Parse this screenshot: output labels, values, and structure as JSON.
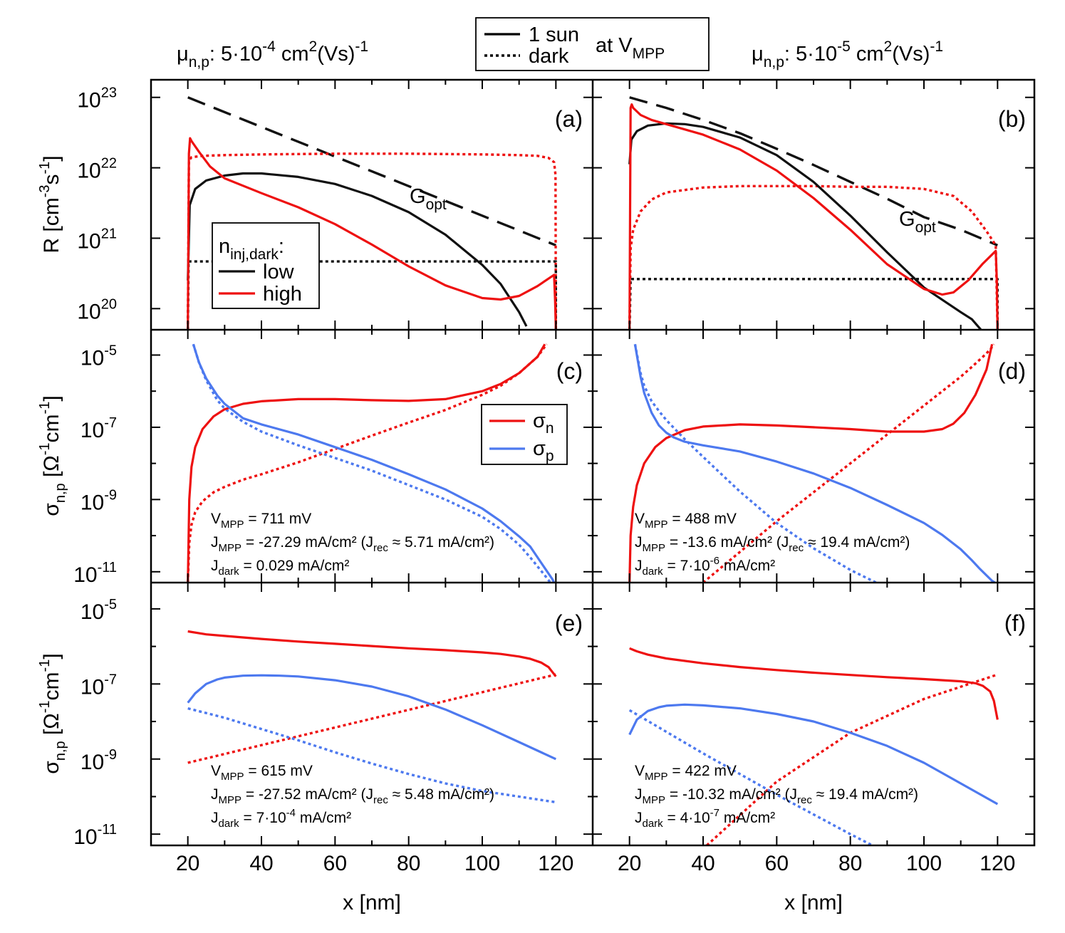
{
  "colors": {
    "red": "#ee1111",
    "blue": "#4d79ef",
    "black": "#000000",
    "blackcurve": "#111111"
  },
  "header": {
    "left_mu": {
      "base": "μ",
      "sub": "n,p",
      "text": ": 5·10",
      "exp": "-4",
      "unit": " cm",
      "unit_exp": "2",
      "tail": "(Vs)",
      "tail_exp": "-1"
    },
    "right_mu": {
      "base": "μ",
      "sub": "n,p",
      "text": ": 5·10",
      "exp": "-5",
      "unit": " cm",
      "unit_exp": "2",
      "tail": "(Vs)",
      "tail_exp": "-1"
    },
    "legend": {
      "solid": "1 sun",
      "dotted": "dark",
      "at": "at V",
      "at_sub": "MPP"
    }
  },
  "axes": {
    "x_label": "x [nm]",
    "x_ticks": [
      "20",
      "40",
      "60",
      "80",
      "100",
      "120"
    ],
    "x_range": [
      10,
      130
    ],
    "row1_ylabel": {
      "base": "R [cm",
      "e1": "-3",
      "mid": "s",
      "e2": "-1",
      "end": "]"
    },
    "row1_ticks": [
      "20",
      "21",
      "22",
      "23"
    ],
    "row1_range": [
      19.7,
      23.25
    ],
    "row23_ylabel": {
      "base": "σ",
      "sub": "n,p",
      "pre": " [Ω",
      "e1": "-1",
      "mid": "cm",
      "e2": "-1",
      "end": "]"
    },
    "row23_ticks": [
      "-5",
      "-7",
      "-9",
      "-11"
    ],
    "row23_range": [
      -11.3,
      -4.3
    ],
    "tick_base": "10"
  },
  "inset_legend_a": {
    "title": "n",
    "title_sub": "inj,dark",
    "title_end": ":",
    "low": "low",
    "high": "high"
  },
  "inset_legend_c": {
    "n": "σ",
    "n_sub": "n",
    "p": "σ",
    "p_sub": "p"
  },
  "g_opt": {
    "base": "G",
    "sub": "opt"
  },
  "chart_data": [
    {
      "panel": "(a)",
      "type": "line",
      "series": [
        {
          "line": "dashed",
          "color": "black",
          "x": [
            20,
            120
          ],
          "y": [
            23.0,
            20.9
          ]
        },
        {
          "line": "solid",
          "color": "black",
          "x": [
            20,
            20.5,
            22,
            25,
            30,
            35,
            40,
            50,
            60,
            70,
            80,
            90,
            100,
            105,
            110,
            112
          ],
          "y": [
            20.4,
            21.47,
            21.7,
            21.82,
            21.89,
            21.92,
            21.92,
            21.87,
            21.77,
            21.6,
            21.37,
            21.05,
            20.62,
            20.35,
            19.95,
            19.75
          ]
        },
        {
          "line": "solid",
          "color": "red",
          "x": [
            20,
            20.3,
            20.6,
            21,
            23,
            26,
            30,
            40,
            50,
            60,
            70,
            80,
            90,
            100,
            105,
            110,
            115,
            119.5,
            119.8,
            120
          ],
          "y": [
            19.7,
            22.2,
            22.42,
            22.38,
            22.23,
            22.02,
            21.85,
            21.64,
            21.44,
            21.2,
            20.91,
            20.6,
            20.33,
            20.15,
            20.13,
            20.18,
            20.32,
            20.48,
            20.1,
            19.7
          ]
        },
        {
          "line": "dotted",
          "color": "red",
          "x": [
            20,
            20.3,
            21,
            24,
            30,
            40,
            60,
            80,
            100,
            110,
            115,
            118,
            119.5,
            119.9,
            120
          ],
          "y": [
            19.7,
            22.1,
            22.15,
            22.17,
            22.18,
            22.19,
            22.2,
            22.2,
            22.19,
            22.18,
            22.17,
            22.14,
            22.08,
            21.9,
            19.7
          ]
        },
        {
          "line": "dotted",
          "color": "black",
          "x": [
            20,
            20.2,
            120,
            120
          ],
          "y": [
            19.7,
            20.67,
            20.67,
            19.7
          ]
        }
      ]
    },
    {
      "panel": "(b)",
      "type": "line",
      "series": [
        {
          "line": "dashed",
          "color": "black",
          "x": [
            20,
            30,
            40,
            50,
            60,
            70,
            80,
            90,
            100,
            110,
            120
          ],
          "y": [
            23.0,
            22.85,
            22.68,
            22.49,
            22.27,
            22.04,
            21.8,
            21.56,
            21.3,
            21.12,
            20.9
          ]
        },
        {
          "line": "solid",
          "color": "black",
          "x": [
            20,
            20.5,
            22,
            25,
            30,
            35,
            40,
            50,
            60,
            70,
            80,
            90,
            100,
            110,
            113,
            115.5
          ],
          "y": [
            22.05,
            22.4,
            22.52,
            22.6,
            22.63,
            22.62,
            22.58,
            22.43,
            22.18,
            21.8,
            21.32,
            20.8,
            20.3,
            19.95,
            19.85,
            19.7
          ]
        },
        {
          "line": "solid",
          "color": "red",
          "x": [
            20,
            20.3,
            20.6,
            21,
            23,
            26,
            30,
            40,
            50,
            60,
            70,
            80,
            90,
            100,
            105,
            108,
            112,
            116,
            119.5,
            119.8,
            120
          ],
          "y": [
            19.7,
            22.85,
            22.9,
            22.85,
            22.75,
            22.68,
            22.62,
            22.47,
            22.26,
            21.96,
            21.57,
            21.12,
            20.63,
            20.28,
            20.2,
            20.23,
            20.4,
            20.64,
            20.82,
            20.4,
            19.7
          ]
        },
        {
          "line": "dotted",
          "color": "red",
          "x": [
            20,
            20.3,
            21,
            23,
            26,
            30,
            40,
            50,
            60,
            70,
            80,
            90,
            100,
            108,
            113,
            117,
            119.5,
            120
          ],
          "y": [
            19.7,
            20.85,
            21.12,
            21.38,
            21.55,
            21.65,
            21.72,
            21.74,
            21.74,
            21.74,
            21.73,
            21.73,
            21.7,
            21.6,
            21.38,
            21.1,
            20.9,
            19.7
          ]
        },
        {
          "line": "dotted",
          "color": "black",
          "x": [
            20,
            20.3,
            120,
            120
          ],
          "y": [
            19.7,
            20.42,
            20.42,
            19.7
          ]
        }
      ]
    },
    {
      "panel": "(c)",
      "type": "line",
      "series": [
        {
          "line": "solid",
          "color": "red",
          "x": [
            20,
            20.4,
            21,
            22,
            24,
            27,
            30,
            35,
            40,
            50,
            60,
            70,
            80,
            90,
            100,
            105,
            110,
            115,
            117
          ],
          "y": [
            -11.3,
            -9.0,
            -8.1,
            -7.55,
            -7.05,
            -6.7,
            -6.5,
            -6.35,
            -6.28,
            -6.22,
            -6.22,
            -6.25,
            -6.27,
            -6.22,
            -6.0,
            -5.8,
            -5.5,
            -5.05,
            -4.7
          ]
        },
        {
          "line": "dotted",
          "color": "red",
          "x": [
            20,
            20.4,
            21,
            22,
            24,
            27,
            30,
            35,
            40,
            50,
            60,
            70,
            80,
            90,
            100,
            105,
            110,
            115,
            117.5
          ],
          "y": [
            -11.3,
            -10.2,
            -9.7,
            -9.35,
            -9.05,
            -8.8,
            -8.65,
            -8.45,
            -8.3,
            -7.97,
            -7.6,
            -7.23,
            -6.87,
            -6.52,
            -6.1,
            -5.85,
            -5.5,
            -5.05,
            -4.7
          ]
        },
        {
          "line": "solid",
          "color": "blue",
          "x": [
            21.5,
            23,
            25,
            28,
            30,
            35,
            40,
            50,
            60,
            70,
            80,
            90,
            100,
            105,
            110,
            113,
            115,
            117,
            118,
            119,
            119.5
          ],
          "y": [
            -4.7,
            -5.2,
            -5.65,
            -6.12,
            -6.35,
            -6.75,
            -6.92,
            -7.2,
            -7.55,
            -7.9,
            -8.3,
            -8.72,
            -9.25,
            -9.6,
            -10.02,
            -10.3,
            -10.6,
            -10.9,
            -11.05,
            -11.2,
            -11.3
          ]
        },
        {
          "line": "dotted",
          "color": "blue",
          "x": [
            21.5,
            23,
            25,
            28,
            30,
            35,
            40,
            50,
            60,
            70,
            80,
            90,
            100,
            105,
            110,
            113,
            115,
            117,
            118.5
          ],
          "y": [
            -4.7,
            -5.2,
            -5.7,
            -6.25,
            -6.48,
            -6.85,
            -7.12,
            -7.5,
            -7.85,
            -8.2,
            -8.6,
            -9.0,
            -9.48,
            -9.82,
            -10.25,
            -10.6,
            -10.85,
            -11.1,
            -11.3
          ]
        }
      ],
      "annotations": [
        {
          "b": "V",
          "s": "MPP",
          "t": " = 711 mV"
        },
        {
          "b": "J",
          "s": "MPP",
          "t": " = -27.29 mA/cm² (J",
          "s2": "rec",
          "t2": " ≈ 5.71 mA/cm²)"
        },
        {
          "b": "J",
          "s": "dark",
          "t": " = 0.029 mA/cm²"
        }
      ]
    },
    {
      "panel": "(d)",
      "type": "line",
      "series": [
        {
          "line": "solid",
          "color": "red",
          "x": [
            20,
            20.3,
            21,
            22,
            24,
            27,
            30,
            35,
            40,
            50,
            60,
            70,
            80,
            90,
            100,
            105,
            108,
            111,
            114,
            117,
            118.5
          ],
          "y": [
            -11.3,
            -10.0,
            -9.2,
            -8.6,
            -8.0,
            -7.55,
            -7.3,
            -7.08,
            -6.98,
            -6.92,
            -6.95,
            -7.0,
            -7.05,
            -7.12,
            -7.12,
            -7.05,
            -6.9,
            -6.6,
            -6.1,
            -5.4,
            -4.7
          ]
        },
        {
          "line": "dotted",
          "color": "red",
          "x": [
            40,
            50,
            60,
            70,
            80,
            90,
            100,
            105,
            110,
            113,
            116,
            118,
            119
          ],
          "y": [
            -11.3,
            -10.45,
            -9.6,
            -8.8,
            -8.0,
            -7.2,
            -6.4,
            -6.0,
            -5.6,
            -5.33,
            -5.05,
            -4.85,
            -4.7
          ]
        },
        {
          "line": "solid",
          "color": "blue",
          "x": [
            21.5,
            23,
            24,
            26,
            28,
            30,
            32,
            35,
            40,
            50,
            60,
            70,
            80,
            90,
            100,
            105,
            110,
            113,
            115,
            117,
            118.5,
            119.3
          ],
          "y": [
            -4.7,
            -5.6,
            -6.05,
            -6.6,
            -6.95,
            -7.15,
            -7.28,
            -7.4,
            -7.5,
            -7.67,
            -7.95,
            -8.28,
            -8.68,
            -9.15,
            -9.65,
            -9.98,
            -10.38,
            -10.68,
            -10.9,
            -11.1,
            -11.25,
            -11.3
          ]
        },
        {
          "line": "dotted",
          "color": "blue",
          "x": [
            21.5,
            23,
            24,
            26,
            28,
            30,
            35,
            40,
            45,
            50,
            60,
            70,
            80,
            87
          ],
          "y": [
            -4.7,
            -5.5,
            -5.85,
            -6.28,
            -6.55,
            -6.8,
            -7.33,
            -7.82,
            -8.3,
            -8.78,
            -9.65,
            -10.35,
            -10.95,
            -11.3
          ]
        }
      ],
      "annotations": [
        {
          "b": "V",
          "s": "MPP",
          "t": " = 488 mV"
        },
        {
          "b": "J",
          "s": "MPP",
          "t": " = -13.6 mA/cm² (J",
          "s2": "rec",
          "t2": " ≈ 19.4 mA/cm²)"
        },
        {
          "b": "J",
          "s": "dark",
          "t": " = 7·10",
          "e": "-6",
          "t3": " mA/cm²"
        }
      ]
    },
    {
      "panel": "(e)",
      "type": "line",
      "series": [
        {
          "line": "solid",
          "color": "red",
          "x": [
            20,
            25,
            30,
            40,
            50,
            60,
            70,
            80,
            90,
            100,
            105,
            110,
            113,
            116,
            118,
            120
          ],
          "y": [
            -5.6,
            -5.68,
            -5.72,
            -5.8,
            -5.87,
            -5.93,
            -5.99,
            -6.05,
            -6.1,
            -6.16,
            -6.2,
            -6.27,
            -6.33,
            -6.43,
            -6.55,
            -6.8
          ]
        },
        {
          "line": "dotted",
          "color": "red",
          "x": [
            20,
            120
          ],
          "y": [
            -9.1,
            -6.75
          ]
        },
        {
          "line": "solid",
          "color": "blue",
          "x": [
            20,
            22,
            25,
            28,
            30,
            35,
            40,
            45,
            50,
            60,
            70,
            80,
            90,
            100,
            110,
            120
          ],
          "y": [
            -7.5,
            -7.25,
            -7.0,
            -6.88,
            -6.83,
            -6.78,
            -6.77,
            -6.78,
            -6.8,
            -6.9,
            -7.07,
            -7.33,
            -7.68,
            -8.1,
            -8.55,
            -9.0
          ]
        },
        {
          "line": "dotted",
          "color": "blue",
          "x": [
            20,
            30,
            40,
            50,
            60,
            70,
            80,
            90,
            100,
            110,
            120
          ],
          "y": [
            -7.65,
            -7.9,
            -8.2,
            -8.5,
            -8.82,
            -9.12,
            -9.4,
            -9.65,
            -9.85,
            -10.0,
            -10.15
          ]
        }
      ],
      "annotations": [
        {
          "b": "V",
          "s": "MPP",
          "t": " = 615 mV"
        },
        {
          "b": "J",
          "s": "MPP",
          "t": " = -27.52 mA/cm² (J",
          "s2": "rec",
          "t2": " ≈ 5.48 mA/cm²)"
        },
        {
          "b": "J",
          "s": "dark",
          "t": " = 7·10",
          "e": "-4",
          "t3": " mA/cm²"
        }
      ]
    },
    {
      "panel": "(f)",
      "type": "line",
      "series": [
        {
          "line": "solid",
          "color": "red",
          "x": [
            20,
            22,
            25,
            30,
            40,
            50,
            60,
            70,
            80,
            90,
            100,
            110,
            114,
            116,
            118,
            119,
            120
          ],
          "y": [
            -6.05,
            -6.13,
            -6.22,
            -6.32,
            -6.45,
            -6.55,
            -6.63,
            -6.7,
            -6.76,
            -6.82,
            -6.87,
            -6.93,
            -6.98,
            -7.05,
            -7.2,
            -7.45,
            -7.95
          ]
        },
        {
          "line": "dotted",
          "color": "red",
          "x": [
            41,
            60,
            80,
            100,
            120
          ],
          "y": [
            -11.3,
            -9.6,
            -8.3,
            -7.4,
            -6.75
          ]
        },
        {
          "line": "solid",
          "color": "blue",
          "x": [
            20,
            22,
            25,
            28,
            30,
            35,
            40,
            50,
            60,
            70,
            80,
            90,
            100,
            110,
            120
          ],
          "y": [
            -8.35,
            -7.95,
            -7.72,
            -7.62,
            -7.58,
            -7.55,
            -7.57,
            -7.65,
            -7.8,
            -8.0,
            -8.3,
            -8.65,
            -9.1,
            -9.65,
            -10.2
          ]
        },
        {
          "line": "dotted",
          "color": "blue",
          "x": [
            20,
            40,
            60,
            80,
            86
          ],
          "y": [
            -7.7,
            -8.85,
            -9.95,
            -11.0,
            -11.3
          ]
        }
      ],
      "annotations": [
        {
          "b": "V",
          "s": "MPP",
          "t": " = 422 mV"
        },
        {
          "b": "J",
          "s": "MPP",
          "t": " = -10.32 mA/cm² (J",
          "s2": "rec",
          "t2": " ≈ 19.4 mA/cm²)"
        },
        {
          "b": "J",
          "s": "dark",
          "t": " = 4·10",
          "e": "-7",
          "t3": " mA/cm²"
        }
      ]
    }
  ]
}
